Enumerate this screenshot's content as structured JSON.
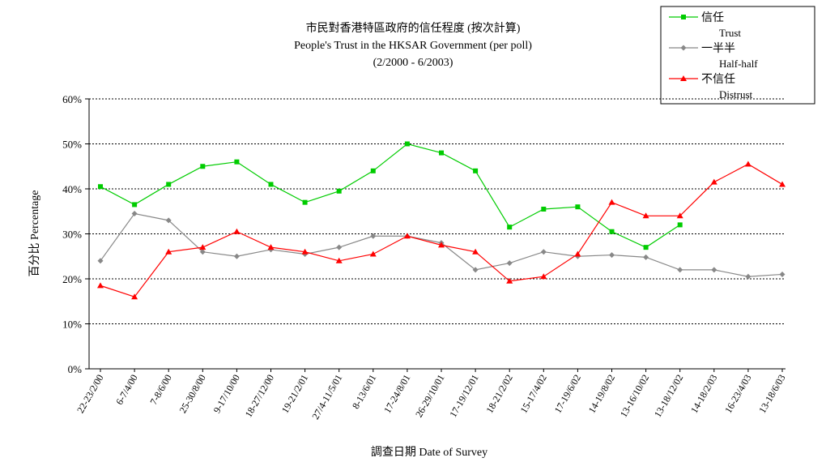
{
  "chart_data": {
    "type": "line",
    "title": "市民對香港特區政府的信任程度 (按次計算)",
    "subtitle": "People's Trust in the HKSAR Government (per poll)",
    "period": "(2/2000 -  6/2003)",
    "xlabel": "調查日期 Date of Survey",
    "ylabel": "百分比 Percentage",
    "ylim": [
      0,
      60
    ],
    "yticks": [
      "0%",
      "10%",
      "20%",
      "30%",
      "40%",
      "50%",
      "60%"
    ],
    "grid": true,
    "legend_position": "top-right",
    "categories": [
      "22-23/2/00",
      "6-7/4/00",
      "7-8/6/00",
      "25-30/8/00",
      "9-17/10/00",
      "18-27/12/00",
      "19-21/2/01",
      "27/4-11/5/01",
      "8-13/6/01",
      "17-24/8/01",
      "26-29/10/01",
      "17-19/12/01",
      "18-21/2/02",
      "15-17/4/02",
      "17-19/6/02",
      "14-19/8/02",
      "13-16/10/02",
      "13-18/12/02",
      "14-18/2/03",
      "16-23/4/03",
      "13-18/6/03"
    ],
    "series": [
      {
        "name": "信任",
        "name_en": "Trust",
        "color": "#00cc00",
        "marker": "square",
        "values": [
          40.5,
          36.5,
          41,
          45,
          46,
          41,
          37,
          39.5,
          44,
          50,
          48,
          44,
          31.5,
          35.5,
          36,
          30.5,
          27,
          32,
          null,
          null,
          null
        ]
      },
      {
        "name": "一半半",
        "name_en": "Half-half",
        "color": "#888888",
        "marker": "diamond",
        "values": [
          24,
          34.5,
          33,
          26,
          25,
          26.5,
          25.5,
          27,
          29.5,
          29.5,
          28,
          22,
          23.5,
          26,
          25,
          25.3,
          24.8,
          22,
          22,
          20.5,
          21
        ]
      },
      {
        "name": "不信任",
        "name_en": "Distrust",
        "color": "#ff0000",
        "marker": "triangle",
        "values": [
          18.5,
          16,
          26,
          27,
          30.5,
          27,
          26,
          24,
          25.5,
          29.5,
          27.5,
          26,
          19.5,
          20.5,
          25.5,
          37,
          34,
          34,
          41.5,
          45.5,
          41
        ]
      }
    ]
  }
}
